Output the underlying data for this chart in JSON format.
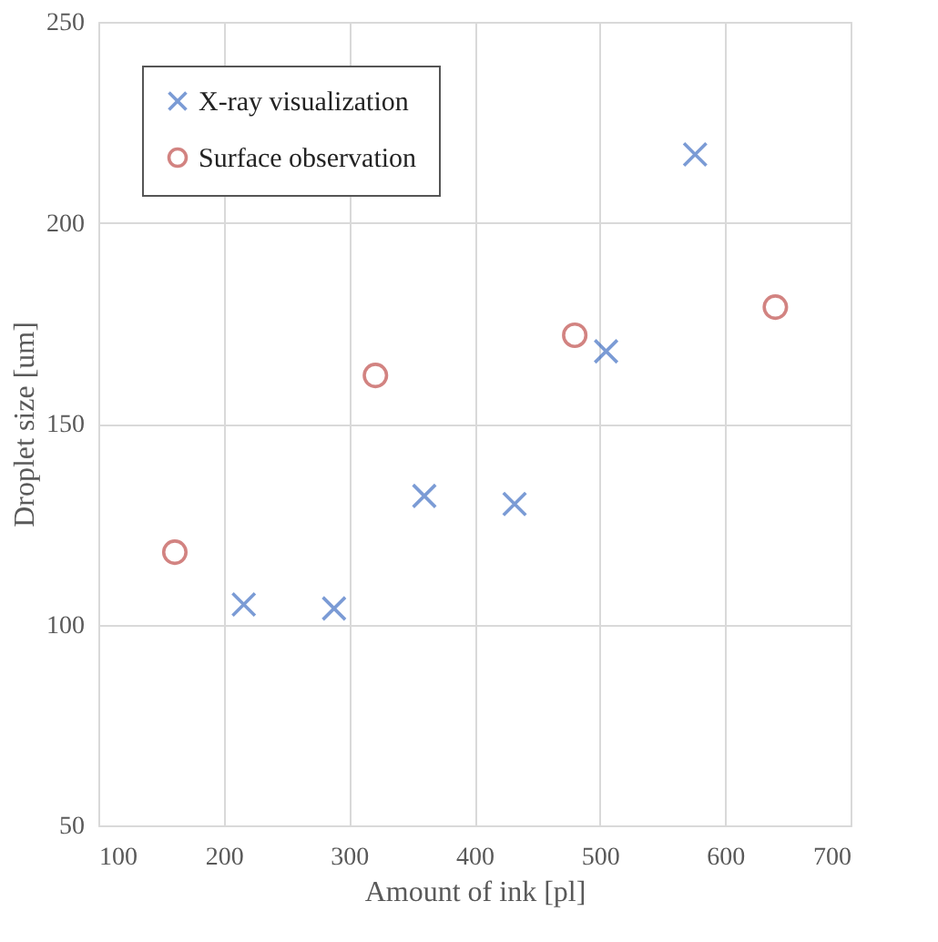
{
  "chart_data": {
    "type": "scatter",
    "xlabel": "Amount of ink [pl]",
    "ylabel": "Droplet size [um]",
    "xlim": [
      100,
      700
    ],
    "xticks": [
      100,
      200,
      300,
      400,
      500,
      600,
      700
    ],
    "ylim": [
      50,
      250
    ],
    "yticks": [
      50,
      100,
      150,
      200,
      250
    ],
    "grid": true,
    "legend": "top left",
    "series": [
      {
        "name": "X-ray visualization",
        "color": "#4472c4",
        "marker": "cross",
        "x": [
          216,
          288,
          360,
          432,
          505,
          576
        ],
        "values": [
          105,
          104,
          132,
          130,
          168,
          217
        ]
      },
      {
        "name": "Surface observation",
        "color": "#c0504d",
        "marker": "circle",
        "x": [
          161,
          321,
          480,
          640
        ],
        "values": [
          118,
          162,
          172,
          179
        ]
      }
    ]
  }
}
